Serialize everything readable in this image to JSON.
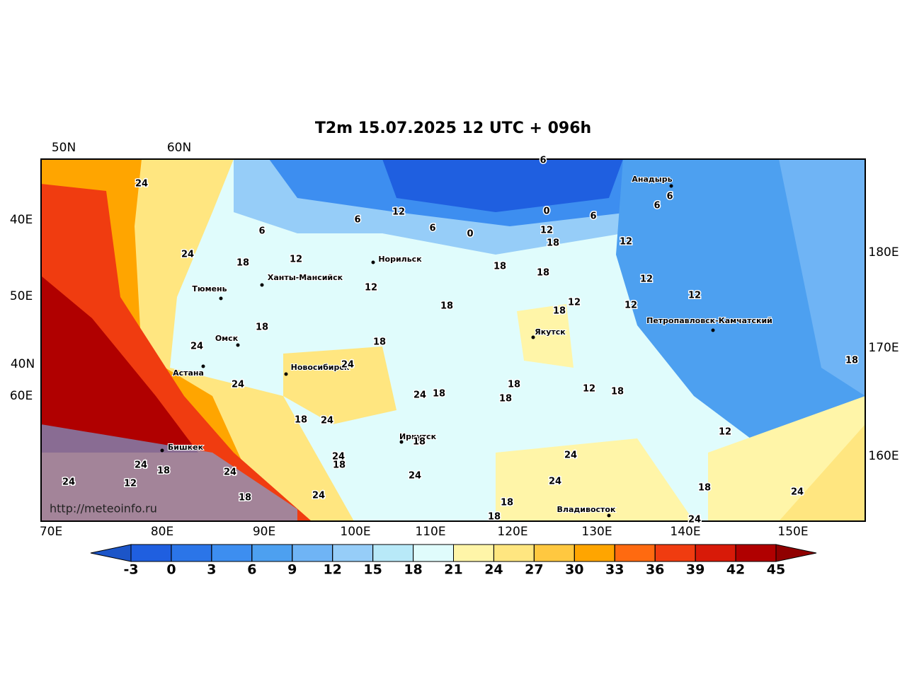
{
  "title": "T2m 15.07.2025 12 UTC + 096h",
  "top_labels": [
    "50N",
    "60N"
  ],
  "left_labels": [
    "40E",
    "50E",
    "40N",
    "60E"
  ],
  "right_labels": [
    "180E",
    "170E",
    "160E"
  ],
  "bottom_labels": [
    "70E",
    "80E",
    "90E",
    "100E",
    "110E",
    "120E",
    "130E",
    "140E",
    "150E"
  ],
  "cities": [
    "Анадырь",
    "Норильск",
    "Ханты-Мансийск",
    "Тюмень",
    "Петропавловск-Камчатский",
    "Якутск",
    "Омск",
    "Астана",
    "Новосибирск",
    "Иркутск",
    "Бишкек",
    "Владивосток"
  ],
  "contour_labels": [
    "24",
    "24",
    "6",
    "12",
    "18",
    "6",
    "12",
    "6",
    "0",
    "6",
    "0",
    "6",
    "12",
    "18",
    "12",
    "18",
    "18",
    "12",
    "12",
    "18",
    "12",
    "18",
    "12",
    "12",
    "6",
    "6",
    "18",
    "24",
    "18",
    "24",
    "24",
    "24",
    "18",
    "18",
    "18",
    "12",
    "18",
    "18",
    "18",
    "24",
    "18",
    "24",
    "18",
    "24",
    "18",
    "24",
    "24",
    "24",
    "12",
    "24",
    "24",
    "12",
    "18",
    "24",
    "18",
    "24",
    "18",
    "18",
    "24"
  ],
  "watermark": "http://meteoinfo.ru",
  "colorbar": {
    "ticks": [
      -3,
      0,
      3,
      6,
      9,
      12,
      15,
      18,
      21,
      24,
      27,
      30,
      33,
      36,
      39,
      42,
      45
    ],
    "colors": [
      "#1f5fe0",
      "#2b75e8",
      "#3d8ef0",
      "#4da0f0",
      "#6fb4f5",
      "#96cdf8",
      "#b8e9f8",
      "#e0fcfc",
      "#fff5a8",
      "#ffe680",
      "#ffc840",
      "#ffa500",
      "#ff6a10",
      "#f03c10",
      "#d81a08",
      "#b00000"
    ],
    "under_color": "#1c55c8",
    "over_color": "#900000"
  }
}
